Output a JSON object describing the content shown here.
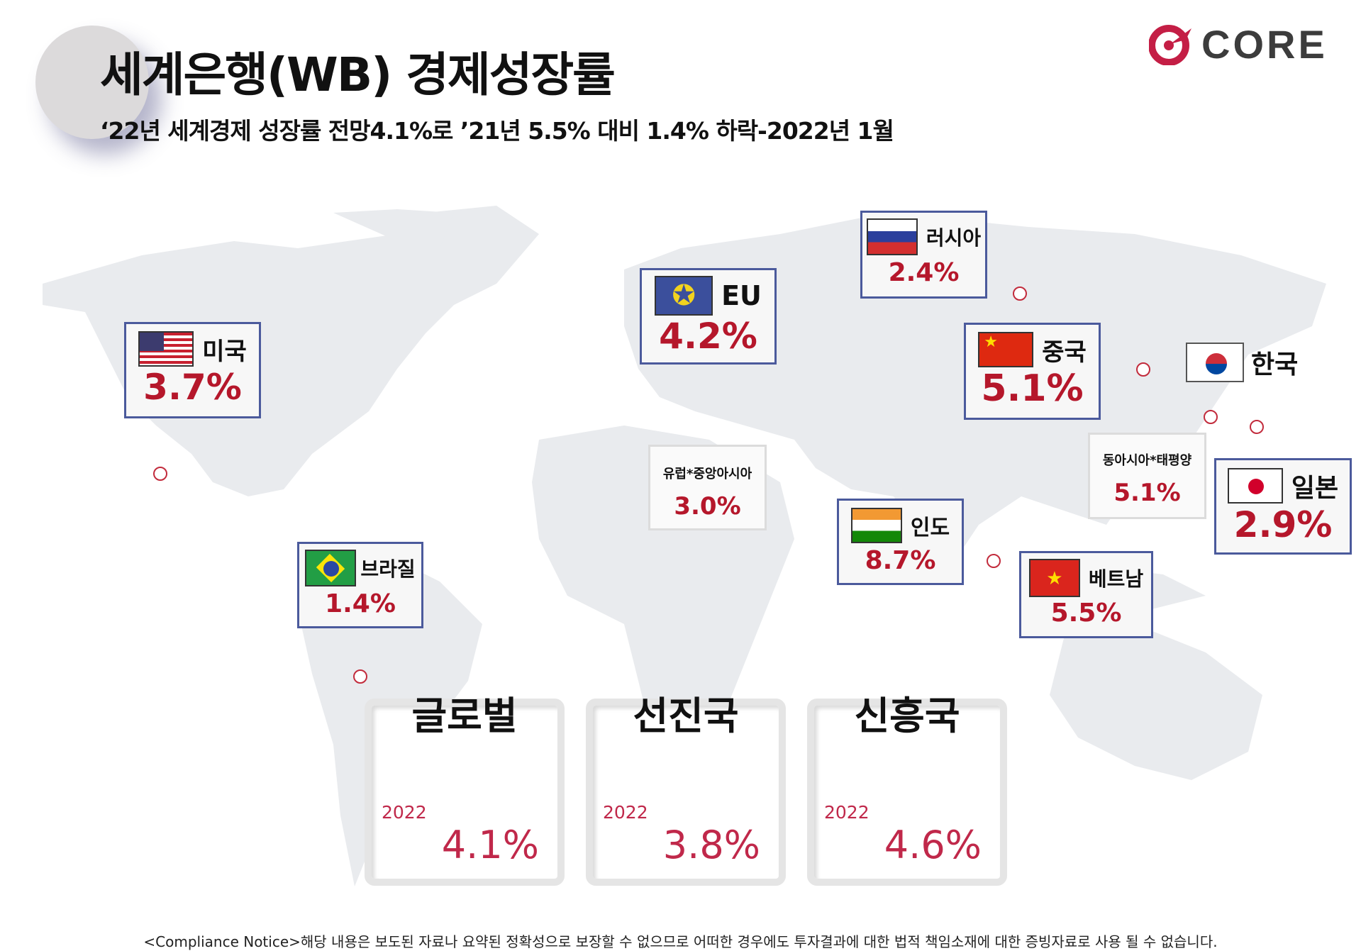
{
  "header": {
    "title": "세계은행(WB) 경제성장률",
    "subtitle": "‘22년 세계경제 성장률 전망4.1%로 ’21년 5.5% 대비 1.4% 하락-2022년 1월",
    "logo_text": "CORE"
  },
  "countries": {
    "usa": {
      "name": "미국",
      "value": "3.7%"
    },
    "eu": {
      "name": "EU",
      "value": "4.2%"
    },
    "russia": {
      "name": "러시아",
      "value": "2.4%"
    },
    "china": {
      "name": "중국",
      "value": "5.1%"
    },
    "korea": {
      "name": "한국"
    },
    "japan": {
      "name": "일본",
      "value": "2.9%"
    },
    "east_asia": {
      "name": "동아시아*태평양",
      "value": "5.1%"
    },
    "europe_central_asia": {
      "name": "유럽*중앙아시아",
      "value": "3.0%"
    },
    "india": {
      "name": "인도",
      "value": "8.7%"
    },
    "vietnam": {
      "name": "베트남",
      "value": "5.5%"
    },
    "brazil": {
      "name": "브라질",
      "value": "1.4%"
    }
  },
  "summary": [
    {
      "title": "글로벌",
      "year": "2022",
      "value": "4.1%"
    },
    {
      "title": "선진국",
      "year": "2022",
      "value": "3.8%"
    },
    {
      "title": "신흥국",
      "year": "2022",
      "value": "4.6%"
    }
  ],
  "footer": {
    "notice": "<Compliance Notice>해당 내용은 보도된 자료나 요약된 정확성으로 보장할 수 없으므로 어떠한 경우에도 투자결과에 대한 법적 책임소재에 대한 증빙자료로 사용 될 수 없습니다."
  },
  "colors": {
    "accent": "#b5172b",
    "border": "#4b5a9c",
    "map": "#e9ebee"
  }
}
